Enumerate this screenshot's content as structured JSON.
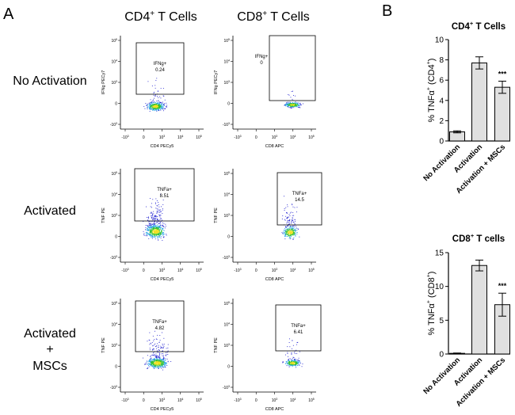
{
  "panel_labels": {
    "a": "A",
    "b": "B"
  },
  "colors": {
    "bar_fill": "#e0e0e0",
    "gate": "#000000",
    "dots_low": "#2020d0",
    "dots_mid": "#20a0e0",
    "dots_high": "#30c030",
    "dots_peak": "#f0e020"
  },
  "flow": {
    "column_headers": [
      {
        "main": "CD4",
        "sup": "+",
        "rest": " T Cells"
      },
      {
        "main": "CD8",
        "sup": "+",
        "rest": " T Cells"
      }
    ],
    "row_labels": [
      {
        "lines": [
          "No Activation"
        ]
      },
      {
        "lines": [
          "Activated"
        ]
      },
      {
        "lines": [
          "Activated",
          "+",
          "MSCs"
        ]
      }
    ],
    "x_ticks": [
      "-10",
      "3",
      "0",
      "10",
      "3",
      "10",
      "4",
      "10",
      "5"
    ],
    "x_tick_labels": [
      {
        "base": "-10",
        "exp": "3"
      },
      {
        "base": "0",
        "exp": ""
      },
      {
        "base": "10",
        "exp": "3"
      },
      {
        "base": "10",
        "exp": "4"
      },
      {
        "base": "10",
        "exp": "5"
      }
    ],
    "y_tick_labels": [
      {
        "base": "10",
        "exp": "5"
      },
      {
        "base": "10",
        "exp": "4"
      },
      {
        "base": "10",
        "exp": "3"
      },
      {
        "base": "0",
        "exp": ""
      },
      {
        "base": "-10",
        "exp": "3"
      }
    ],
    "plots": [
      {
        "xlabel": "CD4 PECy5",
        "ylabel": "IFNg PECy7",
        "gate_name": "IFNg+",
        "gate_value": "0.24"
      },
      {
        "xlabel": "CD8 APC",
        "ylabel": "IFNg PECy7",
        "gate_name": "IFNg+",
        "gate_value": "0"
      },
      {
        "xlabel": "CD4 PECy5",
        "ylabel": "TNF PE",
        "gate_name": "TNFa+",
        "gate_value": "8.51"
      },
      {
        "xlabel": "CD8 APC",
        "ylabel": "TNF PE",
        "gate_name": "TNFa+",
        "gate_value": "14.5"
      },
      {
        "xlabel": "CD4 PECy5",
        "ylabel": "TNF PE",
        "gate_name": "TNFa+",
        "gate_value": "4.82"
      },
      {
        "xlabel": "CD8 APC",
        "ylabel": "TNF PE",
        "gate_name": "TNFa+",
        "gate_value": "6.41"
      }
    ]
  },
  "chart_data": [
    {
      "type": "bar",
      "title": "CD4+  T Cells",
      "title_parts": {
        "main": "CD4",
        "sup": "+",
        "rest": "  T Cells"
      },
      "categories": [
        "No Activation",
        "Activation",
        "Activation + MSCs"
      ],
      "values": [
        0.9,
        7.7,
        5.3
      ],
      "errors": [
        0.1,
        0.6,
        0.6
      ],
      "significance": [
        "",
        "",
        "***"
      ],
      "ylabel": "% TNFα+ (CD4+)",
      "ylabel_parts": {
        "a": "% TNF",
        "alpha": "α",
        "sup1": "+",
        "b": " (CD4",
        "sup2": "+",
        "c": ")"
      },
      "ylim": [
        0,
        10
      ],
      "yticks": [
        "0",
        "2",
        "4",
        "6",
        "8",
        "10"
      ]
    },
    {
      "type": "bar",
      "title": "CD8+ T cells",
      "title_parts": {
        "main": "CD8",
        "sup": "+",
        "rest": " T cells"
      },
      "categories": [
        "No Activation",
        "Activation",
        "Activation + MSCs"
      ],
      "values": [
        0.1,
        13.1,
        7.3
      ],
      "errors": [
        0.05,
        0.8,
        1.7
      ],
      "significance": [
        "",
        "",
        "***"
      ],
      "ylabel": "% TNFα+ (CD8+)",
      "ylabel_parts": {
        "a": "% TNF",
        "alpha": "α",
        "sup1": "+",
        "b": " (CD8",
        "sup2": "+",
        "c": ")"
      },
      "ylim": [
        0,
        15
      ],
      "yticks": [
        "0",
        "5",
        "10",
        "15"
      ]
    }
  ]
}
